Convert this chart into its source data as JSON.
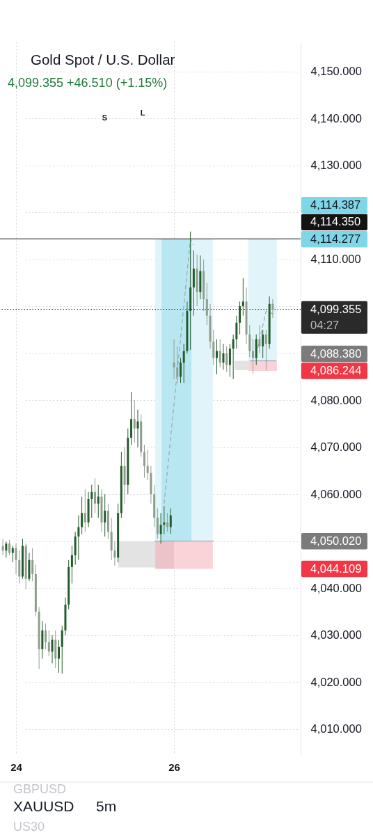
{
  "chart_data": {
    "type": "candlestick",
    "title": "Gold Spot / U.S. Dollar",
    "subtitle": "4,099.355 +46.510 (+1.15%)",
    "categories": [
      null,
      null,
      null,
      null,
      "24",
      null,
      null,
      null,
      null,
      null,
      null,
      null,
      null,
      null,
      null,
      null,
      null,
      null,
      null,
      null,
      null,
      null,
      null,
      null,
      null,
      null,
      null,
      null,
      null,
      null,
      null,
      null,
      null,
      null,
      null,
      null,
      null,
      null,
      null,
      null,
      null,
      null,
      null,
      null,
      null,
      null,
      null,
      null,
      null,
      null,
      null,
      null,
      "26",
      null,
      null,
      null,
      null,
      null,
      null,
      null,
      null,
      null,
      null,
      null,
      null,
      null,
      null,
      null,
      null,
      null,
      null,
      null,
      null,
      null,
      null,
      null,
      null,
      null,
      null,
      null,
      null,
      null,
      null,
      null
    ],
    "ohlc": [
      [
        4049,
        4050.5,
        4047,
        4048
      ],
      [
        4048,
        4050,
        4046.5,
        4049.5
      ],
      [
        4049.5,
        4050.3,
        4047,
        4047.5
      ],
      [
        4047.5,
        4049,
        4045.5,
        4048.5
      ],
      [
        4048.5,
        4049.5,
        4043,
        4046
      ],
      [
        4046,
        4048,
        4041,
        4042.5
      ],
      [
        4042.5,
        4050.5,
        4042,
        4049
      ],
      [
        4049,
        4049.5,
        4039.8,
        4042
      ],
      [
        4042,
        4047.5,
        4041.5,
        4046
      ],
      [
        4046,
        4048.5,
        4041.5,
        4043
      ],
      [
        4043,
        4045,
        4034,
        4035
      ],
      [
        4035,
        4036,
        4022.8,
        4027
      ],
      [
        4027,
        4033,
        4025,
        4031
      ],
      [
        4031,
        4032.5,
        4027,
        4028.5
      ],
      [
        4028.5,
        4031,
        4025.5,
        4026.5
      ],
      [
        4026.5,
        4030,
        4024,
        4029
      ],
      [
        4029,
        4031,
        4023,
        4025
      ],
      [
        4025,
        4029,
        4022,
        4027.5
      ],
      [
        4027.5,
        4032,
        4021.8,
        4031
      ],
      [
        4031,
        4038,
        4030,
        4036.5
      ],
      [
        4036.5,
        4046,
        4035.5,
        4044.5
      ],
      [
        4044.5,
        4049,
        4041,
        4047
      ],
      [
        4047,
        4052,
        4045,
        4051
      ],
      [
        4051,
        4055.5,
        4046,
        4053
      ],
      [
        4053,
        4059.5,
        4051.5,
        4056
      ],
      [
        4056,
        4061,
        4052,
        4054
      ],
      [
        4054,
        4060.5,
        4053,
        4059
      ],
      [
        4059,
        4062,
        4055,
        4060.5
      ],
      [
        4060.5,
        4063.4,
        4056,
        4058
      ],
      [
        4058,
        4062,
        4055,
        4059.5
      ],
      [
        4059.5,
        4061,
        4052,
        4054
      ],
      [
        4054,
        4060,
        4051,
        4056.5
      ],
      [
        4056.5,
        4058,
        4050.5,
        4052
      ],
      [
        4052,
        4055,
        4046,
        4048
      ],
      [
        4048,
        4050,
        4044.8,
        4046.5
      ],
      [
        4046.5,
        4058,
        4045.5,
        4056
      ],
      [
        4056,
        4069,
        4055,
        4066
      ],
      [
        4066,
        4070,
        4058,
        4062
      ],
      [
        4062,
        4074,
        4060,
        4072
      ],
      [
        4072,
        4081.8,
        4070.5,
        4076
      ],
      [
        4076,
        4080,
        4071,
        4074
      ],
      [
        4074,
        4078,
        4070,
        4075.5
      ],
      [
        4075.5,
        4077,
        4068,
        4069
      ],
      [
        4069,
        4070.5,
        4063.5,
        4066
      ],
      [
        4066,
        4069.5,
        4063,
        4064.5
      ],
      [
        4064.5,
        4066,
        4058,
        4060
      ],
      [
        4060,
        4062,
        4053,
        4055
      ],
      [
        4055,
        4057,
        4050.5,
        4051.5
      ],
      [
        4051.5,
        4056,
        4049.5,
        4053.5
      ],
      [
        4053.5,
        4057.5,
        4051.5,
        4054
      ],
      [
        4054,
        4056,
        4052,
        4053
      ],
      [
        4053,
        4057,
        4051.6,
        4055.5
      ],
      [
        4088,
        4093,
        4084.5,
        4087
      ],
      [
        4087,
        4091.5,
        4083.7,
        4085
      ],
      [
        4085,
        4089,
        4083.7,
        4088
      ],
      [
        4088,
        4092,
        4083.7,
        4090.5
      ],
      [
        4090.5,
        4101,
        4090,
        4099
      ],
      [
        4099,
        4115.9,
        4090.7,
        4104
      ],
      [
        4104,
        4111.9,
        4098,
        4108
      ],
      [
        4108,
        4111,
        4100,
        4103
      ],
      [
        4103,
        4110.8,
        4101.5,
        4107.5
      ],
      [
        4107.5,
        4110,
        4099,
        4101.5
      ],
      [
        4101.5,
        4105,
        4096,
        4098
      ],
      [
        4098,
        4100.5,
        4091,
        4092.5
      ],
      [
        4092.5,
        4095,
        4087.5,
        4089
      ],
      [
        4089,
        4093,
        4085.5,
        4090.5
      ],
      [
        4090.5,
        4093,
        4087,
        4088
      ],
      [
        4088,
        4092,
        4086.5,
        4090
      ],
      [
        4090,
        4091.5,
        4086,
        4087.5
      ],
      [
        4087.5,
        4092,
        4085,
        4091
      ],
      [
        4091,
        4094,
        4084.5,
        4093
      ],
      [
        4093,
        4098,
        4091,
        4096.5
      ],
      [
        4096.5,
        4101,
        4094,
        4100
      ],
      [
        4100,
        4106,
        4098,
        4101
      ],
      [
        4101,
        4104,
        4092,
        4094
      ],
      [
        4094,
        4096,
        4089.2,
        4090.5
      ],
      [
        4090.5,
        4093,
        4085.7,
        4089
      ],
      [
        4089,
        4094,
        4087.5,
        4093
      ],
      [
        4093,
        4096,
        4090,
        4091.5
      ],
      [
        4091.5,
        4095,
        4089,
        4094
      ],
      [
        4094,
        4095,
        4086.4,
        4092
      ],
      [
        4092,
        4102.1,
        4091,
        4100.5
      ],
      [
        4100.5,
        4101.5,
        4097.5,
        4099.355
      ],
      null
    ],
    "colors": [
      "#8e9e8e",
      "#245c2c",
      "#8e9e8e",
      "#245c2c",
      "#8e9e8e",
      "#8e9e8e",
      "#245c2c",
      "#8e9e8e",
      "#245c2c",
      "#8e9e8e",
      "#8e9e8e",
      "#8e9e8e",
      "#245c2c",
      "#8e9e8e",
      "#8e9e8e",
      "#245c2c",
      "#8e9e8e",
      "#245c2c",
      "#245c2c",
      "#245c2c",
      "#245c2c",
      "#245c2c",
      "#245c2c",
      "#245c2c",
      "#245c2c",
      "#8e9e8e",
      "#245c2c",
      "#245c2c",
      "#8e9e8e",
      "#245c2c",
      "#8e9e8e",
      "#245c2c",
      "#8e9e8e",
      "#8e9e8e",
      "#8e9e8e",
      "#245c2c",
      "#245c2c",
      "#8e9e8e",
      "#245c2c",
      "#245c2c",
      "#8e9e8e",
      "#245c2c",
      "#8e9e8e",
      "#8e9e8e",
      "#8e9e8e",
      "#8e9e8e",
      "#8e9e8e",
      "#8e9e8e",
      "#245c2c",
      "#245c2c",
      "#8e9e8e",
      "#245c2c",
      "#8e9e8e",
      "#8e9e8e",
      "#245c2c",
      "#245c2c",
      "#245c2c",
      "#245c2c",
      "#245c2c",
      "#8e9e8e",
      "#245c2c",
      "#8e9e8e",
      "#8e9e8e",
      "#8e9e8e",
      "#8e9e8e",
      "#245c2c",
      "#8e9e8e",
      "#245c2c",
      "#8e9e8e",
      "#245c2c",
      "#245c2c",
      "#245c2c",
      "#245c2c",
      "#245c2c",
      "#8e9e8e",
      "#8e9e8e",
      "#8e9e8e",
      "#245c2c",
      "#8e9e8e",
      "#245c2c",
      "#8e9e8e",
      "#245c2c",
      "#8e9e8e",
      null
    ],
    "series": [
      {
        "type": "line",
        "color": "#9598a1",
        "line_style": "solid",
        "values": [
          null,
          null,
          null,
          null,
          null,
          null,
          null,
          null,
          null,
          null,
          null,
          null,
          null,
          null,
          null,
          null,
          null,
          null,
          null,
          null,
          null,
          null,
          null,
          null,
          null,
          null,
          null,
          null,
          null,
          null,
          null,
          null,
          null,
          null,
          null,
          null,
          null,
          null,
          null,
          null,
          null,
          null,
          null,
          null,
          null,
          null,
          4050.02,
          4050.02,
          4050.02,
          4050.02,
          4050.02,
          4050.02,
          4050.02,
          4050.02,
          4050.02,
          4050.02,
          4050.02,
          4050.02,
          4050.02,
          4050.02,
          4050.02,
          4050.02,
          4050.02,
          4050.02,
          4050.02,
          null,
          null,
          null,
          null,
          null,
          null,
          null,
          null,
          null,
          null,
          null,
          null,
          null,
          null,
          null,
          null,
          null,
          null,
          null
        ]
      },
      {
        "type": "line",
        "color": "#9598a1",
        "line_style": "solid",
        "values": [
          null,
          null,
          null,
          null,
          null,
          null,
          null,
          null,
          null,
          null,
          null,
          null,
          null,
          null,
          null,
          null,
          null,
          null,
          null,
          null,
          null,
          null,
          null,
          null,
          null,
          null,
          null,
          null,
          null,
          null,
          null,
          null,
          null,
          null,
          null,
          null,
          null,
          null,
          null,
          null,
          null,
          null,
          null,
          null,
          null,
          null,
          null,
          null,
          null,
          null,
          null,
          null,
          null,
          null,
          null,
          null,
          null,
          null,
          null,
          null,
          null,
          null,
          null,
          null,
          null,
          null,
          null,
          null,
          null,
          null,
          null,
          null,
          null,
          null,
          null,
          4088.38,
          4088.38,
          4088.38,
          4088.38,
          4088.38,
          4088.38,
          4088.38,
          4088.38,
          4088.38
        ]
      },
      {
        "type": "line",
        "color": "#9598a1",
        "line_style": "dashed",
        "values": [
          null,
          null,
          null,
          null,
          null,
          null,
          null,
          null,
          null,
          null,
          null,
          null,
          null,
          null,
          null,
          null,
          null,
          null,
          null,
          null,
          null,
          null,
          null,
          null,
          null,
          null,
          null,
          null,
          null,
          null,
          null,
          null,
          null,
          null,
          null,
          null,
          null,
          null,
          null,
          null,
          null,
          null,
          null,
          null,
          null,
          null,
          null,
          null,
          null,
          4058,
          null,
          null,
          null,
          null,
          null,
          null,
          null,
          4114.3,
          4113,
          null,
          null,
          null,
          null,
          null,
          null,
          null,
          null,
          null,
          null,
          null,
          null,
          null,
          null,
          null,
          null,
          null,
          null,
          null,
          null,
          null,
          null,
          null,
          null,
          null
        ]
      },
      {
        "type": "line",
        "color": "#9598a1",
        "line_style": "dashed",
        "values": [
          null,
          null,
          null,
          null,
          null,
          null,
          null,
          null,
          null,
          null,
          null,
          null,
          null,
          null,
          null,
          null,
          null,
          null,
          null,
          null,
          null,
          null,
          null,
          null,
          null,
          null,
          null,
          null,
          null,
          null,
          null,
          null,
          null,
          null,
          null,
          null,
          null,
          null,
          null,
          null,
          null,
          null,
          null,
          null,
          null,
          null,
          null,
          null,
          null,
          null,
          null,
          null,
          null,
          null,
          null,
          null,
          null,
          null,
          null,
          null,
          null,
          null,
          null,
          null,
          null,
          null,
          null,
          null,
          null,
          null,
          null,
          null,
          null,
          null,
          null,
          null,
          null,
          4089.7,
          null,
          null,
          4099,
          null,
          null,
          4098.1
        ]
      }
    ],
    "bands": [
      {
        "axis": "y",
        "from": 4044.4,
        "to": 4050.02,
        "color": "#e3e3e3"
      },
      {
        "axis": "y",
        "from": 4044.109,
        "to": 4050.02,
        "color": "#ebc3c8"
      },
      {
        "axis": "y",
        "from": 4044.109,
        "to": 4050.02,
        "color": "#f9d3d8"
      },
      {
        "axis": "y",
        "from": 4050.02,
        "to": 4114.277,
        "color": "#e0f4f9"
      },
      {
        "axis": "y",
        "from": 4050.02,
        "to": 4114.277,
        "color": "#b9e7f1"
      },
      {
        "axis": "y",
        "from": 4086.4,
        "to": 4088.38,
        "color": "#e3e3e3"
      },
      {
        "axis": "y",
        "from": 4086.244,
        "to": 4088.38,
        "color": "#f9d3d8"
      },
      {
        "axis": "y",
        "from": 4088.38,
        "to": 4114.387,
        "color": "#e0f4f9"
      }
    ],
    "ref_lines": [
      {
        "axis": "y",
        "value": 4114.35,
        "label": "4,114.350",
        "color": "#131313",
        "line_style": "solid"
      },
      {
        "axis": "y",
        "value": 4099.355,
        "label": "4,099.355\n04:27",
        "color": "#2a2a2a",
        "line_style": "dotted"
      }
    ],
    "ylim": [
      4004.5,
      4156.3
    ],
    "yticks": [
      {
        "value": 4150,
        "label": "4,150.000"
      },
      {
        "value": 4140,
        "label": "4,140.000"
      },
      {
        "value": 4130,
        "label": "4,130.000"
      },
      {
        "value": 4120,
        "label": null
      },
      {
        "value": 4110,
        "label": "4,110.000"
      },
      {
        "value": 4100,
        "label": null
      },
      {
        "value": 4090,
        "label": null
      },
      {
        "value": 4080,
        "label": "4,080.000"
      },
      {
        "value": 4070,
        "label": "4,070.000"
      },
      {
        "value": 4060,
        "label": "4,060.000"
      },
      {
        "value": 4050,
        "label": null
      },
      {
        "value": 4040,
        "label": "4,040.000"
      },
      {
        "value": 4030,
        "label": "4,030.000"
      },
      {
        "value": 4020,
        "label": "4,020.000"
      },
      {
        "value": 4010,
        "label": "4,010.000"
      }
    ],
    "grid": true,
    "annotations": [
      "4,114.387",
      "4,114.277",
      "4,088.380",
      "4,086.244",
      "4,050.020",
      "4,044.109",
      "S",
      "L",
      "GBPUSD",
      "XAUUSD",
      "5m",
      "US30"
    ]
  }
}
